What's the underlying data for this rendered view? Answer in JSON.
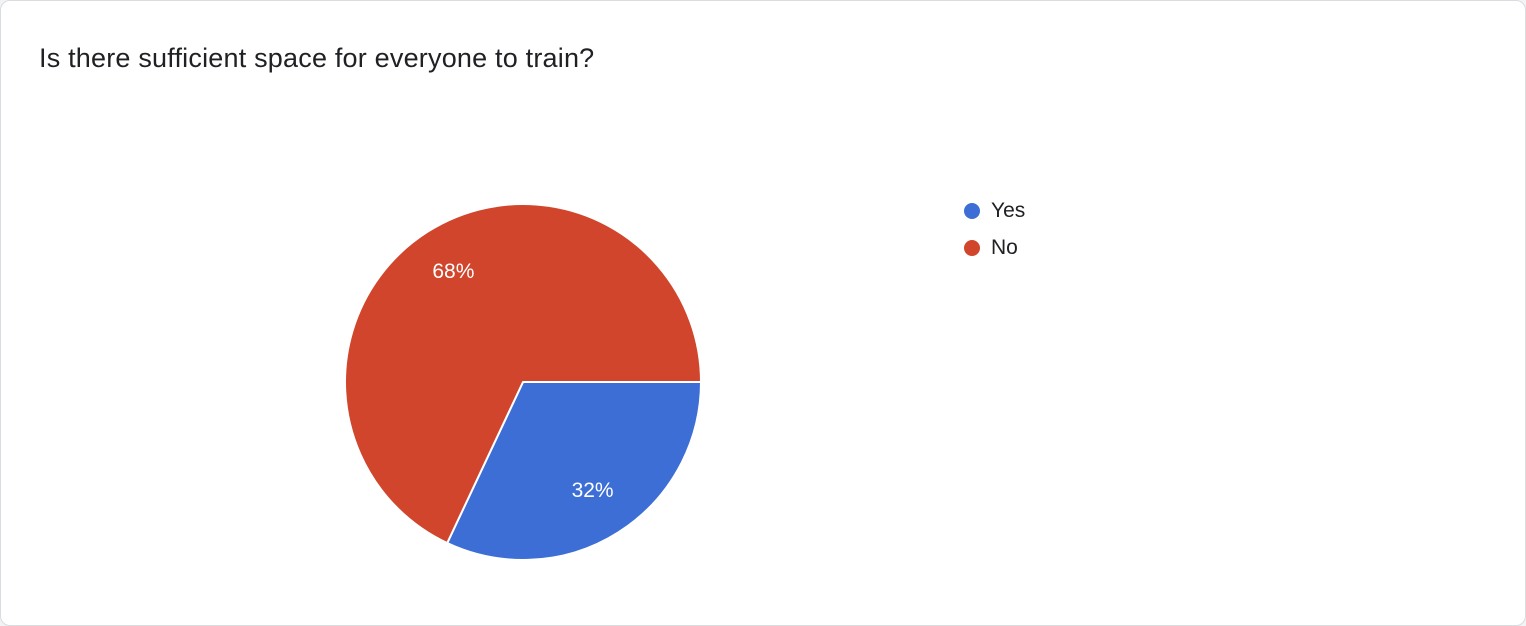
{
  "title": "Is there sufficient space for everyone to train?",
  "chart_data": {
    "type": "pie",
    "title": "Is there sufficient space for everyone to train?",
    "categories": [
      "Yes",
      "No"
    ],
    "values": [
      32,
      68
    ],
    "display_labels": [
      "32%",
      "68%"
    ],
    "unit": "percent",
    "colors": [
      "#3c6ed6",
      "#d0452b"
    ],
    "slice_label_color": "#ffffff",
    "legend_position": "right",
    "start_angle_deg_clockwise_from_east": 0,
    "total": 100
  },
  "legend": {
    "items": [
      {
        "label": "Yes",
        "color": "#3c6ed6"
      },
      {
        "label": "No",
        "color": "#d0452b"
      }
    ]
  }
}
